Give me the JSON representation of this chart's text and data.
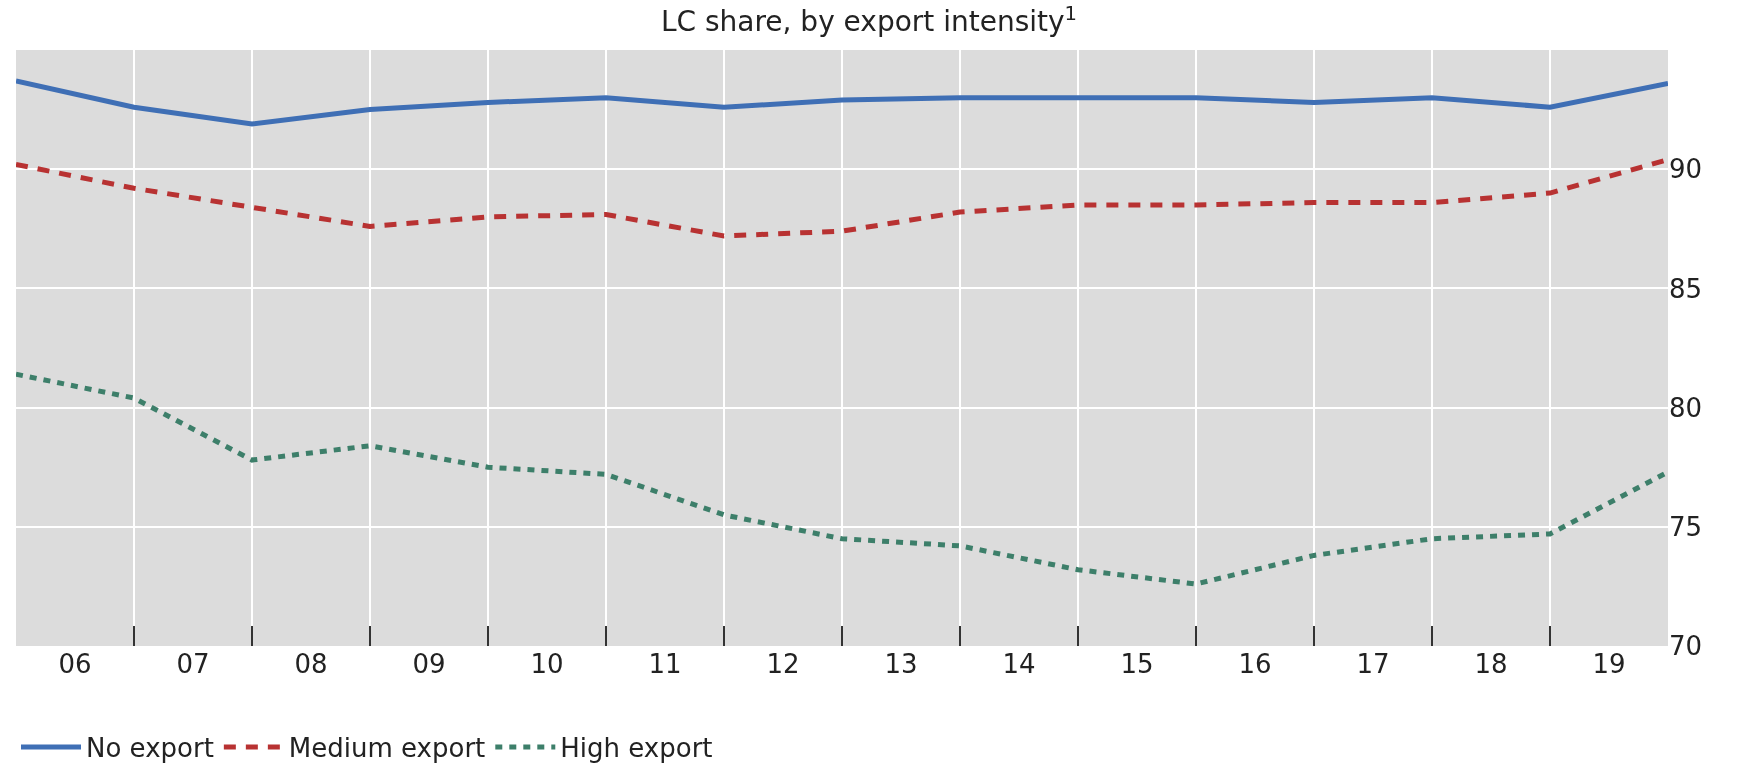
{
  "chart_data": {
    "type": "line",
    "title": "LC share, by export intensity$^{1}$",
    "x": [
      5.5,
      6.5,
      7.5,
      8.5,
      9.5,
      10.5,
      11.5,
      12.5,
      13.5,
      14.5,
      15.5,
      16.5,
      17.5,
      18.5,
      19.5
    ],
    "xlim": [
      5.5,
      19.5
    ],
    "xticks": [
      {
        "value": 5.5,
        "label": null
      },
      {
        "value": 6,
        "label": "06"
      },
      {
        "value": 6.5,
        "label": null
      },
      {
        "value": 7,
        "label": "07"
      },
      {
        "value": 7.5,
        "label": null
      },
      {
        "value": 8,
        "label": "08"
      },
      {
        "value": 8.5,
        "label": null
      },
      {
        "value": 9,
        "label": "09"
      },
      {
        "value": 9.5,
        "label": null
      },
      {
        "value": 10,
        "label": "10"
      },
      {
        "value": 10.5,
        "label": null
      },
      {
        "value": 11,
        "label": "11"
      },
      {
        "value": 11.5,
        "label": null
      },
      {
        "value": 12,
        "label": "12"
      },
      {
        "value": 12.5,
        "label": null
      },
      {
        "value": 13,
        "label": "13"
      },
      {
        "value": 13.5,
        "label": null
      },
      {
        "value": 14,
        "label": "14"
      },
      {
        "value": 14.5,
        "label": null
      },
      {
        "value": 15,
        "label": "15"
      },
      {
        "value": 15.5,
        "label": null
      },
      {
        "value": 16,
        "label": "16"
      },
      {
        "value": 16.5,
        "label": null
      },
      {
        "value": 17,
        "label": "17"
      },
      {
        "value": 17.5,
        "label": null
      },
      {
        "value": 18,
        "label": "18"
      },
      {
        "value": 18.5,
        "label": null
      },
      {
        "value": 19,
        "label": "19"
      },
      {
        "value": 19.5,
        "label": null
      }
    ],
    "ylim": [
      70,
      95
    ],
    "yticks": [
      70,
      75,
      80,
      85,
      90
    ],
    "grid": true,
    "legend": "bottom",
    "series": [
      {
        "name": "No export",
        "color": "#3f6fb5",
        "line_style": "solid",
        "values": [
          93.7,
          92.6,
          91.9,
          92.5,
          92.8,
          93.0,
          92.6,
          92.9,
          93.0,
          93.0,
          93.0,
          92.8,
          93.0,
          92.6,
          93.6
        ]
      },
      {
        "name": "Medium export",
        "color": "#b83232",
        "line_style": "dashed",
        "values": [
          90.2,
          89.2,
          88.4,
          87.6,
          88.0,
          88.1,
          87.2,
          87.4,
          88.2,
          88.5,
          88.5,
          88.6,
          88.6,
          89.0,
          90.4
        ]
      },
      {
        "name": "High export",
        "color": "#3d7f6a",
        "line_style": "dotted",
        "values": [
          81.4,
          80.4,
          77.8,
          78.4,
          77.5,
          77.2,
          75.5,
          74.5,
          74.2,
          73.2,
          72.6,
          73.8,
          74.5,
          74.7,
          77.3
        ]
      }
    ]
  }
}
